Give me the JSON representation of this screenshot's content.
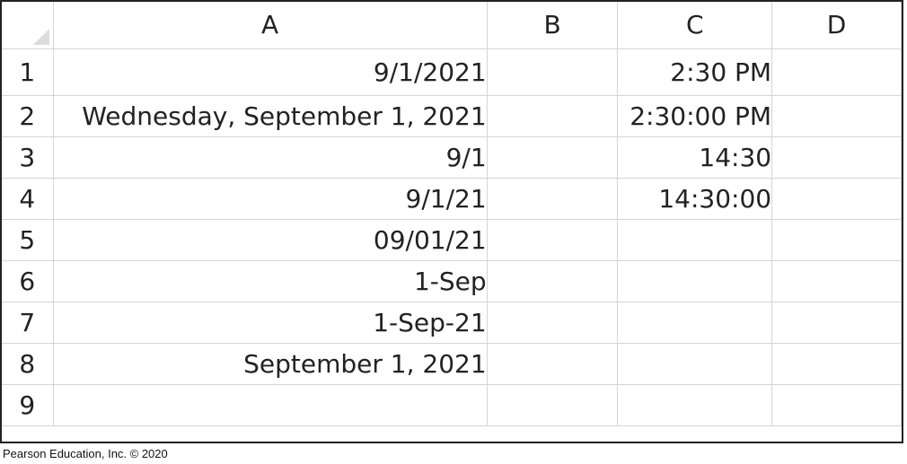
{
  "columns": [
    "A",
    "B",
    "C",
    "D"
  ],
  "rows": [
    {
      "num": "1",
      "A": "9/1/2021",
      "B": "",
      "C": "2:30 PM",
      "D": ""
    },
    {
      "num": "2",
      "A": "Wednesday, September 1, 2021",
      "B": "",
      "C": "2:30:00 PM",
      "D": ""
    },
    {
      "num": "3",
      "A": "9/1",
      "B": "",
      "C": "14:30",
      "D": ""
    },
    {
      "num": "4",
      "A": "9/1/21",
      "B": "",
      "C": "14:30:00",
      "D": ""
    },
    {
      "num": "5",
      "A": "09/01/21",
      "B": "",
      "C": "",
      "D": ""
    },
    {
      "num": "6",
      "A": "1-Sep",
      "B": "",
      "C": "",
      "D": ""
    },
    {
      "num": "7",
      "A": "1-Sep-21",
      "B": "",
      "C": "",
      "D": ""
    },
    {
      "num": "8",
      "A": "September 1, 2021",
      "B": "",
      "C": "",
      "D": ""
    },
    {
      "num": "9",
      "A": "",
      "B": "",
      "C": "",
      "D": ""
    }
  ],
  "footer": {
    "copyright": "Pearson Education, Inc. © 2020"
  },
  "icons": {
    "corner": "select-all-triangle-icon"
  }
}
